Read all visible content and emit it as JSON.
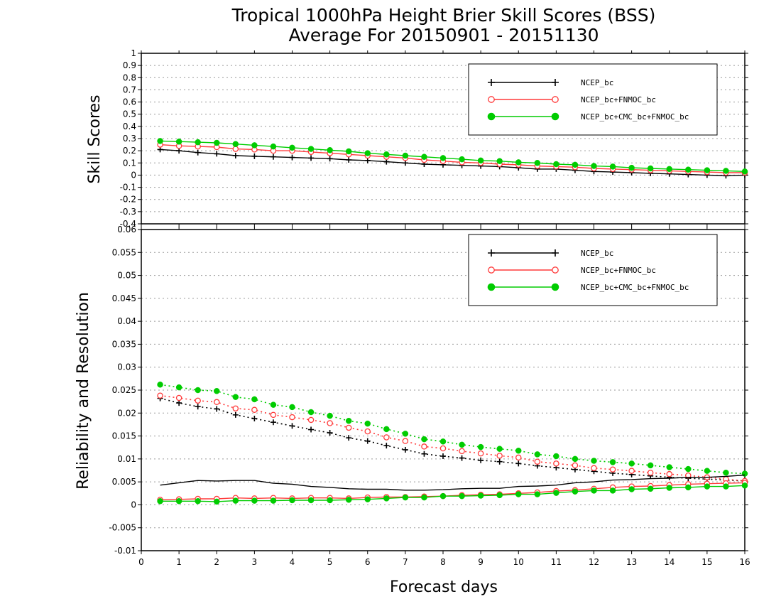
{
  "title": "Tropical 1000hPa Height Brier Skill Scores (BSS)",
  "subtitle": "Average For 20150901 - 20151130",
  "xlabel": "Forecast days",
  "colors": {
    "NCEP_bc": "#000000",
    "NCEP_bc+FNMOC_bc": "#ff3a3a",
    "NCEP_bc+CMC_bc+FNMOC_bc": "#00cc00",
    "grid": "#9a9a9a"
  },
  "chart_data": [
    {
      "type": "line",
      "ylabel": "Skill Scores",
      "xlim": [
        0,
        16
      ],
      "ylim": [
        -0.4,
        1
      ],
      "x_ticks": [
        "0",
        "1",
        "2",
        "3",
        "4",
        "5",
        "6",
        "7",
        "8",
        "9",
        "10",
        "11",
        "12",
        "13",
        "14",
        "15",
        "16"
      ],
      "y_ticks": [
        "1",
        "0.9",
        "0.8",
        "0.7",
        "0.6",
        "0.5",
        "0.4",
        "0.3",
        "0.2",
        "0.1",
        "0",
        "-0.1",
        "-0.2",
        "-0.3",
        "-0.4"
      ],
      "grid": "horizontal dotted",
      "legend_position": "top-right",
      "x": [
        0.5,
        1,
        1.5,
        2,
        2.5,
        3,
        3.5,
        4,
        4.5,
        5,
        5.5,
        6,
        6.5,
        7,
        7.5,
        8,
        8.5,
        9,
        9.5,
        10,
        10.5,
        11,
        11.5,
        12,
        12.5,
        13,
        13.5,
        14,
        14.5,
        15,
        15.5,
        16
      ],
      "series": [
        {
          "name": "NCEP_bc",
          "marker": "plus",
          "style": "solid",
          "values": [
            0.21,
            0.2,
            0.185,
            0.175,
            0.16,
            0.155,
            0.15,
            0.145,
            0.14,
            0.135,
            0.125,
            0.12,
            0.11,
            0.1,
            0.09,
            0.085,
            0.08,
            0.075,
            0.07,
            0.06,
            0.05,
            0.05,
            0.04,
            0.03,
            0.025,
            0.02,
            0.015,
            0.01,
            0.005,
            0.0,
            -0.005,
            0.0
          ]
        },
        {
          "name": "NCEP_bc+FNMOC_bc",
          "marker": "open-circle",
          "style": "solid",
          "values": [
            0.25,
            0.24,
            0.235,
            0.23,
            0.215,
            0.21,
            0.2,
            0.2,
            0.19,
            0.18,
            0.17,
            0.16,
            0.15,
            0.14,
            0.125,
            0.115,
            0.105,
            0.1,
            0.09,
            0.085,
            0.075,
            0.07,
            0.065,
            0.055,
            0.05,
            0.045,
            0.04,
            0.035,
            0.03,
            0.025,
            0.02,
            0.02
          ]
        },
        {
          "name": "NCEP_bc+CMC_bc+FNMOC_bc",
          "marker": "filled-circle",
          "style": "solid",
          "values": [
            0.28,
            0.275,
            0.27,
            0.265,
            0.255,
            0.245,
            0.235,
            0.225,
            0.215,
            0.205,
            0.195,
            0.18,
            0.17,
            0.16,
            0.15,
            0.14,
            0.13,
            0.12,
            0.115,
            0.105,
            0.1,
            0.09,
            0.085,
            0.075,
            0.07,
            0.06,
            0.055,
            0.05,
            0.045,
            0.04,
            0.035,
            0.03
          ]
        }
      ]
    },
    {
      "type": "line",
      "ylabel": "Reliability and Resolution",
      "xlim": [
        0,
        16
      ],
      "ylim": [
        -0.01,
        0.06
      ],
      "x_ticks": [
        "0",
        "1",
        "2",
        "3",
        "4",
        "5",
        "6",
        "7",
        "8",
        "9",
        "10",
        "11",
        "12",
        "13",
        "14",
        "15",
        "16"
      ],
      "y_ticks": [
        "0.06",
        "0.055",
        "0.05",
        "0.045",
        "0.04",
        "0.035",
        "0.03",
        "0.025",
        "0.02",
        "0.015",
        "0.01",
        "0.005",
        "0",
        "-0.005",
        "-0.01"
      ],
      "grid": "horizontal dotted",
      "legend_position": "top-right",
      "x": [
        0.5,
        1,
        1.5,
        2,
        2.5,
        3,
        3.5,
        4,
        4.5,
        5,
        5.5,
        6,
        6.5,
        7,
        7.5,
        8,
        8.5,
        9,
        9.5,
        10,
        10.5,
        11,
        11.5,
        12,
        12.5,
        13,
        13.5,
        14,
        14.5,
        15,
        15.5,
        16
      ],
      "series": [
        {
          "name": "NCEP_bc",
          "marker": "plus",
          "style": "dotted",
          "values": [
            0.0232,
            0.0222,
            0.0214,
            0.0209,
            0.0196,
            0.0188,
            0.018,
            0.0172,
            0.0164,
            0.0157,
            0.0146,
            0.0139,
            0.0129,
            0.012,
            0.0111,
            0.0106,
            0.0102,
            0.0097,
            0.0094,
            0.009,
            0.0085,
            0.0081,
            0.0077,
            0.0073,
            0.0069,
            0.0066,
            0.0063,
            0.006,
            0.0058,
            0.0056,
            0.0054,
            0.0052
          ]
        },
        {
          "name": "NCEP_bc+FNMOC_bc",
          "marker": "open-circle",
          "style": "dotted",
          "values": [
            0.0238,
            0.0233,
            0.0227,
            0.0224,
            0.021,
            0.0207,
            0.0196,
            0.0191,
            0.0185,
            0.0178,
            0.0168,
            0.016,
            0.0147,
            0.0139,
            0.0127,
            0.0123,
            0.0117,
            0.0112,
            0.0107,
            0.0103,
            0.0094,
            0.009,
            0.0086,
            0.008,
            0.0077,
            0.0074,
            0.007,
            0.0067,
            0.0064,
            0.006,
            0.0056,
            0.0052
          ]
        },
        {
          "name": "NCEP_bc+CMC_bc+FNMOC_bc",
          "marker": "filled-circle",
          "style": "dotted",
          "values": [
            0.0262,
            0.0256,
            0.025,
            0.0248,
            0.0235,
            0.023,
            0.0218,
            0.0213,
            0.0202,
            0.0194,
            0.0183,
            0.0177,
            0.0165,
            0.0155,
            0.0143,
            0.0138,
            0.0131,
            0.0126,
            0.0122,
            0.0118,
            0.011,
            0.0106,
            0.01,
            0.0096,
            0.0093,
            0.009,
            0.0086,
            0.0082,
            0.0078,
            0.0074,
            0.007,
            0.0068
          ]
        },
        {
          "name": "NCEP_bc",
          "marker": "none",
          "style": "solid",
          "values": [
            0.0043,
            0.0048,
            0.0053,
            0.0052,
            0.0053,
            0.0053,
            0.0047,
            0.0045,
            0.004,
            0.0038,
            0.0035,
            0.0034,
            0.0034,
            0.0032,
            0.0032,
            0.0033,
            0.0035,
            0.0036,
            0.0036,
            0.004,
            0.0041,
            0.0043,
            0.0048,
            0.005,
            0.0054,
            0.0055,
            0.0057,
            0.0058,
            0.006,
            0.006,
            0.0062,
            0.0065
          ]
        },
        {
          "name": "NCEP_bc+FNMOC_bc",
          "marker": "open-circle",
          "style": "solid",
          "values": [
            0.0011,
            0.0012,
            0.0013,
            0.0013,
            0.0015,
            0.0014,
            0.0015,
            0.0014,
            0.0015,
            0.0015,
            0.0014,
            0.0016,
            0.0017,
            0.0017,
            0.0018,
            0.0019,
            0.0021,
            0.0022,
            0.0023,
            0.0025,
            0.0027,
            0.003,
            0.0032,
            0.0035,
            0.0038,
            0.004,
            0.0041,
            0.0043,
            0.0045,
            0.0046,
            0.0047,
            0.0048
          ]
        },
        {
          "name": "NCEP_bc+CMC_bc+FNMOC_bc",
          "marker": "filled-circle",
          "style": "solid",
          "values": [
            0.0008,
            0.0008,
            0.0008,
            0.0007,
            0.0009,
            0.0009,
            0.0009,
            0.001,
            0.001,
            0.001,
            0.0011,
            0.0012,
            0.0014,
            0.0016,
            0.0016,
            0.0019,
            0.0019,
            0.002,
            0.0021,
            0.0023,
            0.0023,
            0.0026,
            0.0029,
            0.0031,
            0.0031,
            0.0034,
            0.0035,
            0.0037,
            0.0038,
            0.004,
            0.004,
            0.0042
          ]
        }
      ]
    }
  ],
  "legend": [
    {
      "name": "NCEP_bc",
      "marker": "plus"
    },
    {
      "name": "NCEP_bc+FNMOC_bc",
      "marker": "open-circle"
    },
    {
      "name": "NCEP_bc+CMC_bc+FNMOC_bc",
      "marker": "filled-circle"
    }
  ]
}
